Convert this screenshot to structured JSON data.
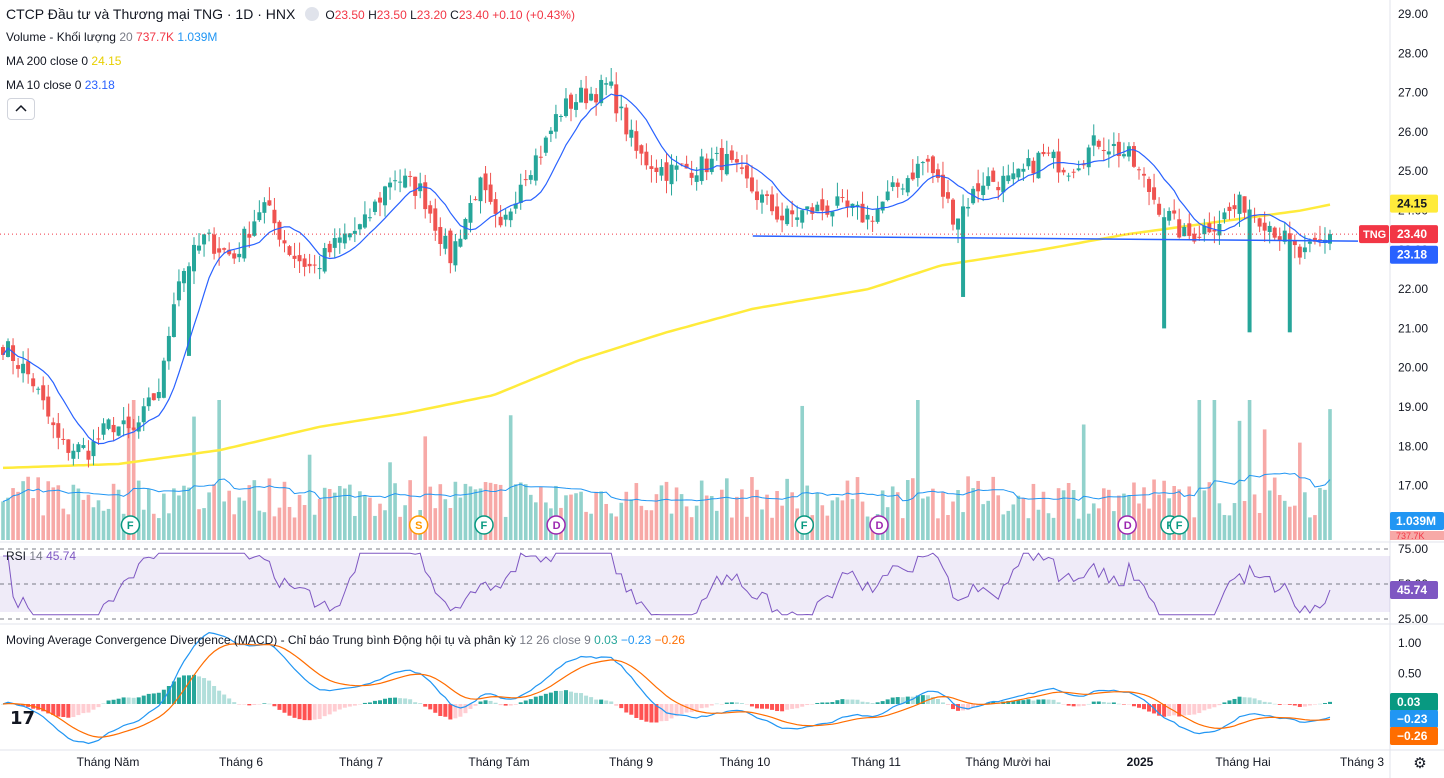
{
  "header": {
    "title": "CTCP Đầu tư và Thương mại TNG · 1D · HNX",
    "o_label": "O",
    "o_value": "23.50",
    "h_label": "H",
    "h_value": "23.50",
    "l_label": "L",
    "l_value": "23.20",
    "c_label": "C",
    "c_value": "23.40",
    "change": "+0.10 (+0.43%)"
  },
  "legend": {
    "volume_label": "Volume - Khối lượng",
    "volume_param": "20",
    "volume_value": "737.7K",
    "volume_ma": "1.039M",
    "ma200_label": "MA 200 close 0",
    "ma200_value": "24.15",
    "ma10_label": "MA 10 close 0",
    "ma10_value": "23.18",
    "collapse_icon": "chevron-up-icon"
  },
  "rsi": {
    "label": "RSI",
    "param": "14",
    "value": "45.74"
  },
  "macd": {
    "label": "Moving Average Convergence Divergence (MACD) - Chỉ báo Trung bình Động hội tụ và phân kỳ",
    "params": "12 26 close 9",
    "hist": "0.03",
    "macd": "−0.23",
    "signal": "−0.26"
  },
  "colors": {
    "up": "#26a69a",
    "down": "#ef5350",
    "ma10": "#2962ff",
    "ma200": "#ffeb3b",
    "rsi": "#7e57c2",
    "macd": "#2196f3",
    "signal": "#ff6d00",
    "price_tag": "#f23645"
  },
  "chart_data": {
    "type": "candlestick",
    "symbol": "TNG",
    "last_price": "23.40",
    "price_axis_ticks": [
      "29.00",
      "28.00",
      "27.00",
      "26.00",
      "25.00",
      "24.00",
      "23.00",
      "22.00",
      "21.00",
      "20.00",
      "19.00",
      "18.00",
      "17.00"
    ],
    "price_ylim": [
      16.4,
      29.2
    ],
    "time_labels": [
      "Tháng Năm",
      "Tháng 6",
      "Tháng 7",
      "Tháng Tám",
      "Tháng 9",
      "Tháng 10",
      "Tháng 11",
      "Tháng Mười hai",
      "2025",
      "Tháng Hai",
      "Tháng 3"
    ],
    "price_tags": [
      {
        "label": "24.15",
        "value": 24.15,
        "kind": "ma200"
      },
      {
        "label": "23.40",
        "value": 23.4,
        "kind": "price"
      },
      {
        "label": "23.18",
        "value": 23.18,
        "kind": "ma10"
      }
    ],
    "volume_tag": "1.039M",
    "volume_tag_partial": "737.7K",
    "events": [
      {
        "letter": "F",
        "at": 0.073
      },
      {
        "letter": "S",
        "at": 0.289
      },
      {
        "letter": "F",
        "at": 0.338
      },
      {
        "letter": "D",
        "at": 0.392
      },
      {
        "letter": "F",
        "at": 0.578
      },
      {
        "letter": "D",
        "at": 0.634
      },
      {
        "letter": "D",
        "at": 0.82
      },
      {
        "letter": "F",
        "at": 0.852
      },
      {
        "letter": "F",
        "at": 0.859
      }
    ],
    "trendline": {
      "from": [
        0.52,
        23.35
      ],
      "to": [
        0.94,
        23.22
      ]
    },
    "close_anchors": [
      [
        0.0,
        20.6
      ],
      [
        0.02,
        19.7
      ],
      [
        0.04,
        18.0
      ],
      [
        0.06,
        17.9
      ],
      [
        0.075,
        18.6
      ],
      [
        0.09,
        18.3
      ],
      [
        0.11,
        19.6
      ],
      [
        0.12,
        22.2
      ],
      [
        0.14,
        23.3
      ],
      [
        0.16,
        22.8
      ],
      [
        0.18,
        24.2
      ],
      [
        0.2,
        22.9
      ],
      [
        0.215,
        22.5
      ],
      [
        0.235,
        23.3
      ],
      [
        0.25,
        23.6
      ],
      [
        0.27,
        24.9
      ],
      [
        0.29,
        24.5
      ],
      [
        0.31,
        22.8
      ],
      [
        0.33,
        24.7
      ],
      [
        0.345,
        23.4
      ],
      [
        0.36,
        24.9
      ],
      [
        0.375,
        25.6
      ],
      [
        0.385,
        26.5
      ],
      [
        0.4,
        26.9
      ],
      [
        0.41,
        27.0
      ],
      [
        0.42,
        27.2
      ],
      [
        0.44,
        25.4
      ],
      [
        0.46,
        25.0
      ],
      [
        0.48,
        25.1
      ],
      [
        0.5,
        25.3
      ],
      [
        0.52,
        24.5
      ],
      [
        0.54,
        23.8
      ],
      [
        0.56,
        24.0
      ],
      [
        0.58,
        24.1
      ],
      [
        0.6,
        23.8
      ],
      [
        0.62,
        24.6
      ],
      [
        0.64,
        25.3
      ],
      [
        0.66,
        23.8
      ],
      [
        0.68,
        24.8
      ],
      [
        0.7,
        24.7
      ],
      [
        0.72,
        25.4
      ],
      [
        0.74,
        25.1
      ],
      [
        0.76,
        25.8
      ],
      [
        0.78,
        25.4
      ],
      [
        0.8,
        24.2
      ],
      [
        0.82,
        23.3
      ],
      [
        0.84,
        23.7
      ],
      [
        0.86,
        24.2
      ],
      [
        0.88,
        23.6
      ],
      [
        0.9,
        22.8
      ],
      [
        0.92,
        23.3
      ]
    ],
    "ma200_anchors": [
      [
        0.0,
        17.45
      ],
      [
        0.08,
        17.55
      ],
      [
        0.15,
        17.9
      ],
      [
        0.22,
        18.5
      ],
      [
        0.28,
        18.85
      ],
      [
        0.34,
        19.3
      ],
      [
        0.4,
        20.2
      ],
      [
        0.46,
        20.9
      ],
      [
        0.52,
        21.5
      ],
      [
        0.6,
        22.0
      ],
      [
        0.65,
        22.6
      ],
      [
        0.72,
        23.0
      ],
      [
        0.78,
        23.4
      ],
      [
        0.84,
        23.7
      ],
      [
        0.9,
        24.0
      ],
      [
        0.92,
        24.15
      ]
    ],
    "rsi_ticks": [
      "75.00",
      "50.00",
      "25.00"
    ],
    "rsi_last": 45.74,
    "macd_ticks": [
      "1.00",
      "0.50",
      "0.00",
      "−0.50"
    ],
    "macd_last": {
      "macd": -0.23,
      "signal": -0.26,
      "hist": 0.03
    }
  },
  "icons": {
    "logo": "tradingview-logo-icon",
    "settings": "gear-icon"
  },
  "logo_text": "17",
  "gear_glyph": "⚙"
}
